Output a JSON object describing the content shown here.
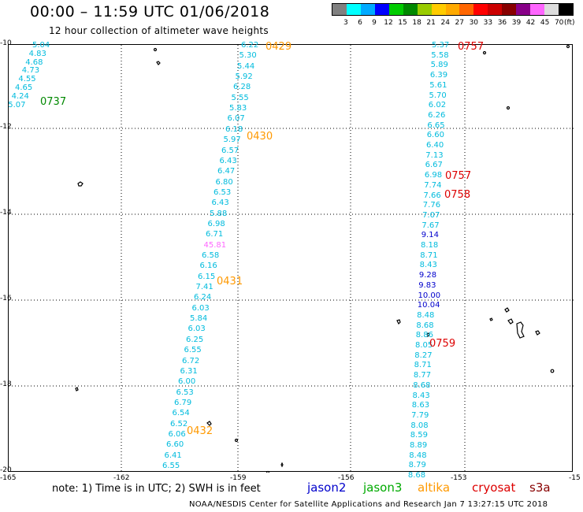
{
  "title": "00:00 – 11:59 UTC 01/06/2018",
  "subtitle": "12 hour collection of altimeter wave heights",
  "colorbar": {
    "colors": [
      "#808080",
      "#00ffff",
      "#00aaff",
      "#0000ff",
      "#00cc00",
      "#008800",
      "#99cc00",
      "#ffcc00",
      "#ffaa00",
      "#ff6600",
      "#ff0000",
      "#cc0000",
      "#880000",
      "#880088",
      "#ff66ff",
      "#dddddd",
      "#000000"
    ],
    "ticks": [
      "3",
      "6",
      "9",
      "12",
      "15",
      "18",
      "21",
      "24",
      "27",
      "30",
      "33",
      "36",
      "39",
      "42",
      "45",
      "70",
      "(ft)"
    ]
  },
  "axes": {
    "lat_labels": [
      "-10",
      "-12",
      "-14",
      "-16",
      "-18",
      "-20"
    ],
    "lon_labels": [
      "-165",
      "-162",
      "-159",
      "-156",
      "-153",
      "-15"
    ]
  },
  "tracks": [
    {
      "id": "t737",
      "values": [
        "5.04",
        "4.83",
        "4.68",
        "4.73",
        "4.55",
        "4.65",
        "4.24",
        "5.07"
      ],
      "label": "0737",
      "label_color": "#008800"
    },
    {
      "id": "t429",
      "values": [
        "6.22",
        "5.30",
        "5.44",
        "5.92",
        "6.28",
        "5.55",
        "5.83",
        "6.07",
        "6.18",
        "5.97",
        "6.57",
        "6.43",
        "6.47",
        "6.80",
        "6.53",
        "6.43",
        "5.88",
        "6.98",
        "6.71",
        "45.81",
        "6.58",
        "6.16",
        "6.15",
        "7.41",
        "6.24",
        "6.03",
        "5.84",
        "6.03",
        "6.25",
        "6.55",
        "6.72",
        "6.31",
        "6.00",
        "6.53",
        "6.79",
        "6.54",
        "6.52",
        "6.06",
        "6.60",
        "6.41",
        "6.55"
      ],
      "labels": [
        {
          "text": "0429",
          "at": 0
        },
        {
          "text": "0430",
          "at": 9
        },
        {
          "text": "0431",
          "at": 23
        },
        {
          "text": "0432",
          "at": 37
        }
      ],
      "label_color": "#ff9900"
    },
    {
      "id": "t757",
      "values": [
        "5.37",
        "5.58",
        "5.89",
        "6.39",
        "5.61",
        "5.70",
        "6.02",
        "6.26",
        "6.65",
        "6.60",
        "6.40",
        "7.13",
        "6.67",
        "6.98",
        "7.74",
        "7.66",
        "7.76",
        "7.07",
        "7.67",
        "9.14",
        "8.18",
        "8.71",
        "8.43",
        "9.28",
        "9.83",
        "10.00",
        "10.04",
        "8.48",
        "8.68",
        "8.86",
        "8.05",
        "8.27",
        "8.71",
        "8.77",
        "8.68",
        "8.43",
        "8.63",
        "7.79",
        "8.08",
        "8.59",
        "8.89",
        "8.48",
        "8.79",
        "8.68"
      ],
      "labels": [
        {
          "text": "0757",
          "at": 0
        },
        {
          "text": "0757",
          "at": 14
        },
        {
          "text": "0758",
          "at": 16
        },
        {
          "text": "0759",
          "at": 31
        }
      ],
      "label_color": "#dd0000"
    }
  ],
  "note": "note: 1) Time is in UTC; 2) SWH is in feet",
  "legend": [
    {
      "name": "jason2",
      "color": "#0000cc"
    },
    {
      "name": "jason3",
      "color": "#00aa00"
    },
    {
      "name": "altika",
      "color": "#ff9900"
    },
    {
      "name": "cryosat",
      "color": "#dd0000"
    },
    {
      "name": "s3a",
      "color": "#880000"
    }
  ],
  "footer": "NOAA/NESDIS Center for Satellite Applications and Research    Jan  7 13:27:15 UTC 2018"
}
